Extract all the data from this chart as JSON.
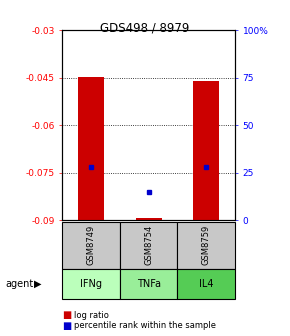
{
  "title": "GDS498 / 8979",
  "samples": [
    "GSM8749",
    "GSM8754",
    "GSM8759"
  ],
  "agents": [
    "IFNg",
    "TNFa",
    "IL4"
  ],
  "log_ratios": [
    -0.0449,
    -0.0895,
    -0.046
  ],
  "percentile_ranks": [
    28,
    15,
    28
  ],
  "ylim_left": [
    -0.09,
    -0.03
  ],
  "ylim_right": [
    0,
    100
  ],
  "yticks_left": [
    -0.09,
    -0.075,
    -0.06,
    -0.045,
    -0.03
  ],
  "yticks_right": [
    0,
    25,
    50,
    75,
    100
  ],
  "ytick_labels_left": [
    "-0.09",
    "-0.075",
    "-0.06",
    "-0.045",
    "-0.03"
  ],
  "ytick_labels_right": [
    "0",
    "25",
    "50",
    "75",
    "100%"
  ],
  "bar_color": "#cc0000",
  "dot_color": "#0000cc",
  "sample_bg": "#c8c8c8",
  "agent_colors": [
    "#bbffbb",
    "#99ee99",
    "#55cc55"
  ],
  "background": "#ffffff"
}
